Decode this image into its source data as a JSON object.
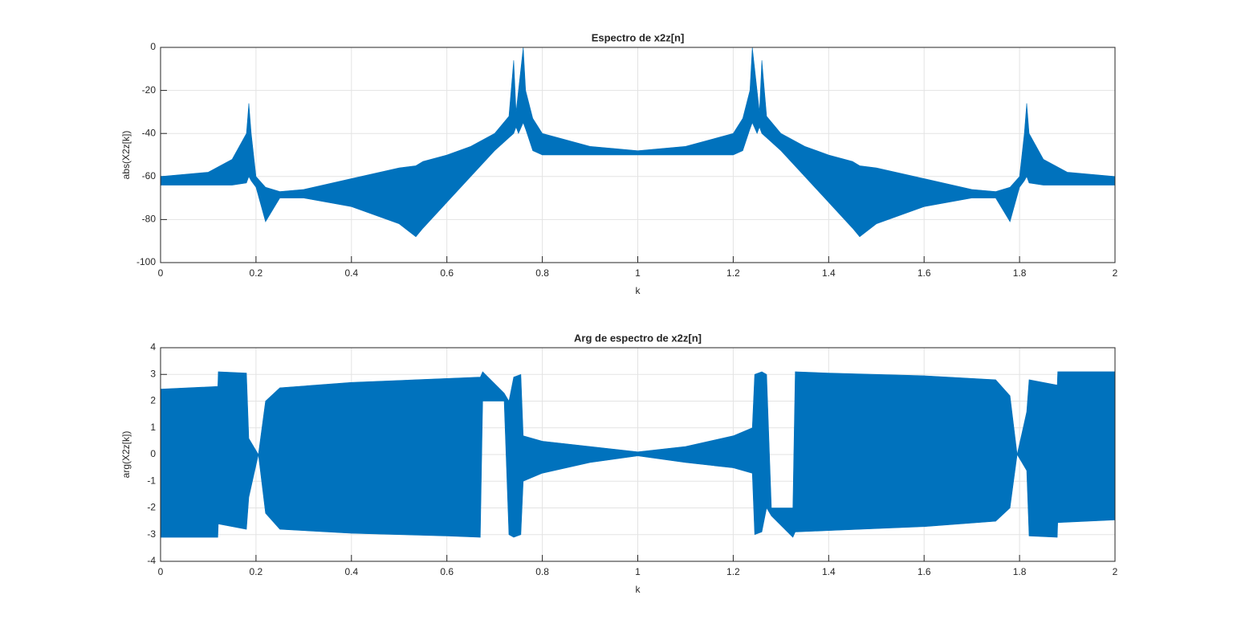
{
  "chart_data": [
    {
      "type": "band",
      "title": "Espectro de x2z[n]",
      "xlabel": "k",
      "ylabel": "abs(X2z[k])",
      "color": "#0072bd",
      "grid": true,
      "xlim": [
        0,
        2
      ],
      "xticks": [
        0,
        0.2,
        0.4,
        0.6,
        0.8,
        1,
        1.2,
        1.4,
        1.6,
        1.8,
        2
      ],
      "ylim": [
        -100,
        0
      ],
      "yticks": [
        -100,
        -80,
        -60,
        -40,
        -20,
        0
      ],
      "x": [
        0,
        0.1,
        0.15,
        0.18,
        0.185,
        0.19,
        0.2,
        0.22,
        0.25,
        0.3,
        0.4,
        0.5,
        0.535,
        0.55,
        0.6,
        0.65,
        0.7,
        0.73,
        0.74,
        0.745,
        0.75,
        0.76,
        0.765,
        0.78,
        0.8,
        0.9,
        1.0,
        1.1,
        1.2,
        1.22,
        1.235,
        1.24,
        1.25,
        1.255,
        1.26,
        1.27,
        1.3,
        1.35,
        1.4,
        1.45,
        1.465,
        1.5,
        1.6,
        1.7,
        1.75,
        1.78,
        1.8,
        1.81,
        1.815,
        1.82,
        1.85,
        1.9,
        2.0
      ],
      "upper": [
        -60,
        -58,
        -52,
        -40,
        -26,
        -40,
        -60,
        -65,
        -67,
        -66,
        -61,
        -56,
        -55,
        -53,
        -50,
        -46,
        -40,
        -32,
        -6,
        -30,
        -20,
        0,
        -20,
        -33,
        -40,
        -46,
        -48,
        -46,
        -40,
        -33,
        -20,
        0,
        -20,
        -30,
        -6,
        -32,
        -40,
        -46,
        -50,
        -53,
        -55,
        -56,
        -61,
        -66,
        -67,
        -65,
        -60,
        -40,
        -26,
        -40,
        -52,
        -58,
        -60
      ],
      "lower": [
        -64,
        -64,
        -64,
        -63,
        -60,
        -62,
        -65,
        -81,
        -70,
        -70,
        -74,
        -82,
        -88,
        -84,
        -72,
        -60,
        -48,
        -42,
        -40,
        -37,
        -40,
        -35,
        -38,
        -48,
        -50,
        -50,
        -50,
        -50,
        -50,
        -48,
        -38,
        -35,
        -40,
        -37,
        -40,
        -42,
        -48,
        -60,
        -72,
        -84,
        -88,
        -82,
        -74,
        -70,
        -70,
        -81,
        -65,
        -62,
        -60,
        -63,
        -64,
        -64,
        -64
      ]
    },
    {
      "type": "band",
      "title": "Arg de espectro de x2z[n]",
      "xlabel": "k",
      "ylabel": "arg(X2z[k])",
      "color": "#0072bd",
      "grid": true,
      "xlim": [
        0,
        2
      ],
      "xticks": [
        0,
        0.2,
        0.4,
        0.6,
        0.8,
        1,
        1.2,
        1.4,
        1.6,
        1.8,
        2
      ],
      "ylim": [
        -4,
        4
      ],
      "yticks": [
        -4,
        -3,
        -2,
        -1,
        0,
        1,
        2,
        3,
        4
      ],
      "x": [
        0,
        0.12,
        0.121,
        0.18,
        0.185,
        0.205,
        0.22,
        0.25,
        0.4,
        0.6,
        0.67,
        0.675,
        0.72,
        0.73,
        0.74,
        0.755,
        0.76,
        0.8,
        0.9,
        1.0,
        1.1,
        1.2,
        1.24,
        1.245,
        1.26,
        1.27,
        1.28,
        1.325,
        1.33,
        1.4,
        1.6,
        1.75,
        1.78,
        1.795,
        1.815,
        1.82,
        1.879,
        1.88,
        2.0
      ],
      "upper": [
        2.45,
        2.55,
        3.1,
        3.05,
        0.6,
        0,
        2.0,
        2.5,
        2.7,
        2.85,
        2.9,
        3.1,
        2.3,
        2.0,
        2.9,
        3.0,
        0.7,
        0.5,
        0.3,
        0.1,
        0.3,
        0.7,
        1.0,
        3.0,
        3.1,
        3.0,
        -2.0,
        -2.0,
        3.1,
        3.05,
        2.95,
        2.8,
        2.2,
        0,
        1.6,
        2.8,
        2.6,
        3.1,
        3.1
      ],
      "lower": [
        -3.1,
        -3.1,
        -2.6,
        -2.8,
        -1.6,
        0,
        -2.2,
        -2.8,
        -2.95,
        -3.05,
        -3.1,
        2.0,
        2.0,
        -3.0,
        -3.1,
        -3.0,
        -1.0,
        -0.7,
        -0.3,
        -0.05,
        -0.3,
        -0.5,
        -0.7,
        -3.0,
        -2.9,
        -2.0,
        -2.3,
        -3.1,
        -2.9,
        -2.85,
        -2.7,
        -2.5,
        -2.0,
        0,
        -0.6,
        -3.05,
        -3.1,
        -2.55,
        -2.45
      ]
    }
  ]
}
